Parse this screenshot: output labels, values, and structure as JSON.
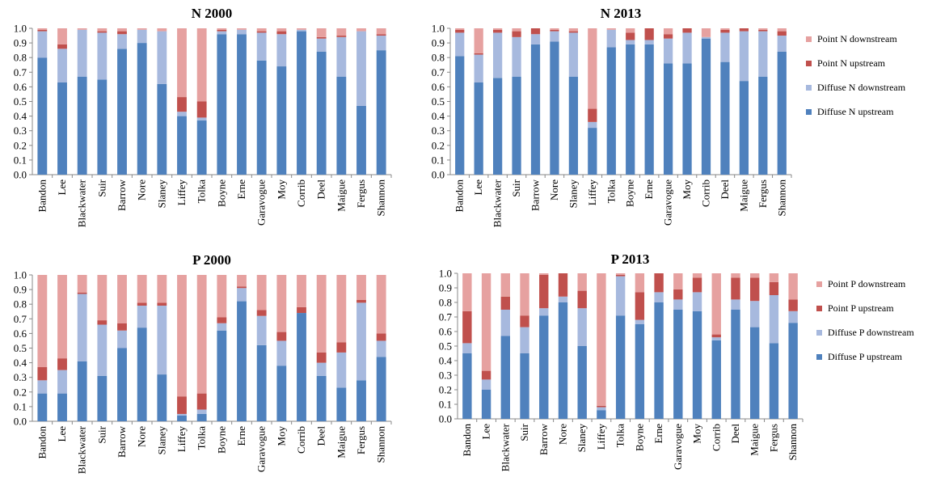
{
  "colors": {
    "diffuse_upstream": "#4F81BD",
    "diffuse_downstream": "#A7B9DE",
    "point_upstream": "#C0504D",
    "point_downstream": "#E6A1A0"
  },
  "chart_data": [
    {
      "type": "bar",
      "stacked": true,
      "title": "N 2000",
      "ylim": [
        0,
        1
      ],
      "yticks": [
        "0.0",
        "0.1",
        "0.2",
        "0.3",
        "0.4",
        "0.5",
        "0.6",
        "0.7",
        "0.8",
        "0.9",
        "1.0"
      ],
      "grid": false,
      "categories": [
        "Bandon",
        "Lee",
        "Blackwater",
        "Suir",
        "Barrow",
        "Nore",
        "Slaney",
        "Liffey",
        "Tolka",
        "Boyne",
        "Erne",
        "Garavogue",
        "Moy",
        "Corrib",
        "Deel",
        "Maigue",
        "Fergus",
        "Shannon"
      ],
      "series": [
        {
          "name": "Diffuse N upstream",
          "color_key": "diffuse_upstream",
          "values": [
            0.8,
            0.63,
            0.67,
            0.65,
            0.86,
            0.9,
            0.62,
            0.4,
            0.37,
            0.96,
            0.96,
            0.78,
            0.74,
            0.98,
            0.84,
            0.67,
            0.47,
            0.85
          ]
        },
        {
          "name": "Diffuse N downstream",
          "color_key": "diffuse_downstream",
          "values": [
            0.18,
            0.23,
            0.32,
            0.32,
            0.1,
            0.09,
            0.36,
            0.03,
            0.02,
            0.02,
            0.03,
            0.19,
            0.22,
            0.01,
            0.09,
            0.27,
            0.51,
            0.1
          ]
        },
        {
          "name": "Point N upstream",
          "color_key": "point_upstream",
          "values": [
            0.01,
            0.03,
            0.0,
            0.01,
            0.02,
            0.0,
            0.0,
            0.1,
            0.11,
            0.01,
            0.0,
            0.01,
            0.02,
            0.0,
            0.01,
            0.01,
            0.0,
            0.01
          ]
        },
        {
          "name": "Point N downstream",
          "color_key": "point_downstream",
          "values": [
            0.01,
            0.11,
            0.01,
            0.02,
            0.02,
            0.01,
            0.02,
            0.47,
            0.5,
            0.01,
            0.01,
            0.02,
            0.02,
            0.01,
            0.06,
            0.05,
            0.02,
            0.04
          ]
        }
      ]
    },
    {
      "type": "bar",
      "stacked": true,
      "title": "N 2013",
      "ylim": [
        0,
        1
      ],
      "yticks": [
        "0.0",
        "0.1",
        "0.2",
        "0.3",
        "0.4",
        "0.5",
        "0.6",
        "0.7",
        "0.8",
        "0.9",
        "1.0"
      ],
      "grid": false,
      "legend_position": "right",
      "categories": [
        "Bandon",
        "Lee",
        "Blackwater",
        "Suir",
        "Barrow",
        "Nore",
        "Slaney",
        "Liffey",
        "Tolka",
        "Boyne",
        "Erne",
        "Garavogue",
        "Moy",
        "Corrib",
        "Deel",
        "Maigue",
        "Fergus",
        "Shannon"
      ],
      "series": [
        {
          "name": "Diffuse N upstream",
          "color_key": "diffuse_upstream",
          "values": [
            0.81,
            0.63,
            0.66,
            0.67,
            0.89,
            0.91,
            0.67,
            0.32,
            0.87,
            0.89,
            0.89,
            0.76,
            0.76,
            0.93,
            0.77,
            0.64,
            0.67,
            0.84
          ]
        },
        {
          "name": "Diffuse N downstream",
          "color_key": "diffuse_downstream",
          "values": [
            0.16,
            0.19,
            0.31,
            0.27,
            0.07,
            0.07,
            0.3,
            0.04,
            0.12,
            0.03,
            0.03,
            0.17,
            0.21,
            0.01,
            0.2,
            0.34,
            0.31,
            0.11
          ]
        },
        {
          "name": "Point N upstream",
          "color_key": "point_upstream",
          "values": [
            0.02,
            0.01,
            0.02,
            0.04,
            0.04,
            0.01,
            0.01,
            0.09,
            0.0,
            0.05,
            0.08,
            0.03,
            0.03,
            0.0,
            0.02,
            0.02,
            0.01,
            0.03
          ]
        },
        {
          "name": "Point N downstream",
          "color_key": "point_downstream",
          "values": [
            0.01,
            0.17,
            0.01,
            0.02,
            0.0,
            0.01,
            0.02,
            0.55,
            0.01,
            0.03,
            0.0,
            0.04,
            0.0,
            0.06,
            0.01,
            0.0,
            0.01,
            0.02
          ]
        }
      ]
    },
    {
      "type": "bar",
      "stacked": true,
      "title": "P 2000",
      "ylim": [
        0,
        1
      ],
      "yticks": [
        "0.0",
        "0.1",
        "0.2",
        "0.3",
        "0.4",
        "0.5",
        "0.6",
        "0.7",
        "0.8",
        "0.9",
        "1.0"
      ],
      "grid": false,
      "categories": [
        "Bandon",
        "Lee",
        "Blackwater",
        "Suir",
        "Barrow",
        "Nore",
        "Slaney",
        "Liffey",
        "Tolka",
        "Boyne",
        "Erne",
        "Garavogue",
        "Moy",
        "Corrib",
        "Deel",
        "Maigue",
        "Fergus",
        "Shannon"
      ],
      "series": [
        {
          "name": "Diffuse P upstream",
          "color_key": "diffuse_upstream",
          "values": [
            0.19,
            0.19,
            0.41,
            0.31,
            0.5,
            0.64,
            0.32,
            0.04,
            0.05,
            0.62,
            0.82,
            0.52,
            0.38,
            0.74,
            0.31,
            0.23,
            0.28,
            0.44
          ]
        },
        {
          "name": "Diffuse P downstream",
          "color_key": "diffuse_downstream",
          "values": [
            0.09,
            0.16,
            0.46,
            0.35,
            0.12,
            0.15,
            0.47,
            0.01,
            0.03,
            0.05,
            0.09,
            0.2,
            0.17,
            0.0,
            0.09,
            0.24,
            0.53,
            0.11
          ]
        },
        {
          "name": "Point P upstream",
          "color_key": "point_upstream",
          "values": [
            0.09,
            0.08,
            0.01,
            0.03,
            0.05,
            0.02,
            0.02,
            0.12,
            0.11,
            0.04,
            0.01,
            0.04,
            0.06,
            0.04,
            0.07,
            0.07,
            0.02,
            0.05
          ]
        },
        {
          "name": "Point P downstream",
          "color_key": "point_downstream",
          "values": [
            0.63,
            0.57,
            0.12,
            0.31,
            0.33,
            0.19,
            0.19,
            0.83,
            0.81,
            0.29,
            0.08,
            0.24,
            0.39,
            0.22,
            0.53,
            0.46,
            0.17,
            0.4
          ]
        }
      ]
    },
    {
      "type": "bar",
      "stacked": true,
      "title": "P 2013",
      "ylim": [
        0,
        1
      ],
      "yticks": [
        "0.0",
        "0.1",
        "0.2",
        "0.3",
        "0.4",
        "0.5",
        "0.6",
        "0.7",
        "0.8",
        "0.9",
        "1.0"
      ],
      "grid": false,
      "legend_position": "right",
      "categories": [
        "Bandon",
        "Lee",
        "Blackwater",
        "Suir",
        "Barrow",
        "Nore",
        "Slaney",
        "Liffey",
        "Tolka",
        "Boyne",
        "Erne",
        "Garavogue",
        "Moy",
        "Corrib",
        "Deel",
        "Maigue",
        "Fergus",
        "Shannon"
      ],
      "series": [
        {
          "name": "Diffuse P upstream",
          "color_key": "diffuse_upstream",
          "values": [
            0.45,
            0.2,
            0.57,
            0.45,
            0.71,
            0.8,
            0.5,
            0.06,
            0.71,
            0.65,
            0.8,
            0.75,
            0.74,
            0.54,
            0.75,
            0.63,
            0.52,
            0.66
          ]
        },
        {
          "name": "Diffuse P downstream",
          "color_key": "diffuse_downstream",
          "values": [
            0.07,
            0.07,
            0.18,
            0.18,
            0.05,
            0.04,
            0.26,
            0.02,
            0.27,
            0.03,
            0.07,
            0.07,
            0.13,
            0.02,
            0.07,
            0.18,
            0.33,
            0.08
          ]
        },
        {
          "name": "Point P upstream",
          "color_key": "point_upstream",
          "values": [
            0.22,
            0.06,
            0.09,
            0.08,
            0.23,
            0.16,
            0.12,
            0.01,
            0.01,
            0.19,
            0.13,
            0.07,
            0.1,
            0.02,
            0.15,
            0.16,
            0.09,
            0.08
          ]
        },
        {
          "name": "Point P downstream",
          "color_key": "point_downstream",
          "values": [
            0.26,
            0.67,
            0.16,
            0.29,
            0.01,
            0.0,
            0.12,
            0.91,
            0.01,
            0.13,
            0.0,
            0.11,
            0.03,
            0.42,
            0.03,
            0.03,
            0.06,
            0.18
          ]
        }
      ]
    }
  ]
}
